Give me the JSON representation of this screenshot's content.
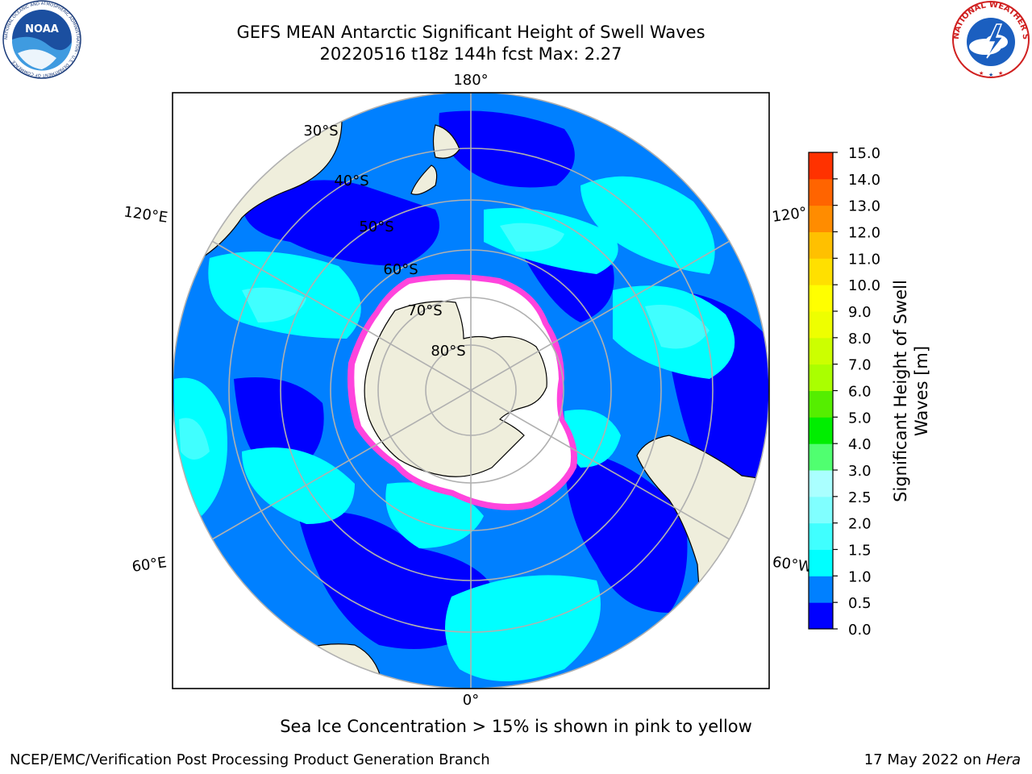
{
  "header": {
    "title_line1": "GEFS MEAN Antarctic Significant Height of Swell Waves",
    "title_line2": "20220516 t18z 144h fcst   Max: 2.27"
  },
  "logos": {
    "left": "noaa-logo",
    "left_text": "NOAA",
    "left_ring_text": "NATIONAL OCEANIC AND ATMOSPHERIC ADMINISTRATION · U.S. DEPARTMENT OF COMMERCE",
    "right": "national-weather-service-logo",
    "right_ring_text": "NATIONAL WEATHER SERVICE"
  },
  "map": {
    "projection": "south-polar-stereographic",
    "longitude_labels": [
      "180°",
      "120°E",
      "120°",
      "60°E",
      "60°W",
      "0°"
    ],
    "latitude_labels": [
      "30°S",
      "40°S",
      "50°S",
      "60°S",
      "70°S",
      "80°S"
    ],
    "colors": {
      "ocean_low": "#0000ff",
      "ocean_mid": "#0080ff",
      "ocean_high": "#00ffff",
      "ocean_higher": "#40ffff",
      "land": "#efeedc",
      "sea_ice": "#ffffff",
      "ice_edge": "#ff44dd",
      "ice_edge_inner": "#ffb000",
      "grid": "#b0b0b0"
    }
  },
  "colorbar": {
    "label": "Significant Height of Swell Waves [m]",
    "tick_labels": [
      "0.0",
      "0.5",
      "1.0",
      "1.5",
      "2.0",
      "2.5",
      "3.0",
      "4.0",
      "5.0",
      "6.0",
      "7.0",
      "8.0",
      "9.0",
      "10.0",
      "11.0",
      "12.0",
      "13.0",
      "14.0",
      "15.0"
    ],
    "colors": [
      "#0000ff",
      "#0080ff",
      "#00ffff",
      "#40ffff",
      "#80ffff",
      "#aaffff",
      "#50ff70",
      "#00ee00",
      "#55ee00",
      "#aaff00",
      "#ccff00",
      "#eeff00",
      "#ffff00",
      "#ffe000",
      "#ffc000",
      "#ff8c00",
      "#ff6400",
      "#ff3200",
      "#ff0000"
    ]
  },
  "footer": {
    "caption": "Sea Ice Concentration > 15% is shown in pink to yellow",
    "left": "NCEP/EMC/Verification Post Processing Product Generation Branch",
    "right_prefix": "17 May 2022 on ",
    "right_host": "Hera"
  }
}
